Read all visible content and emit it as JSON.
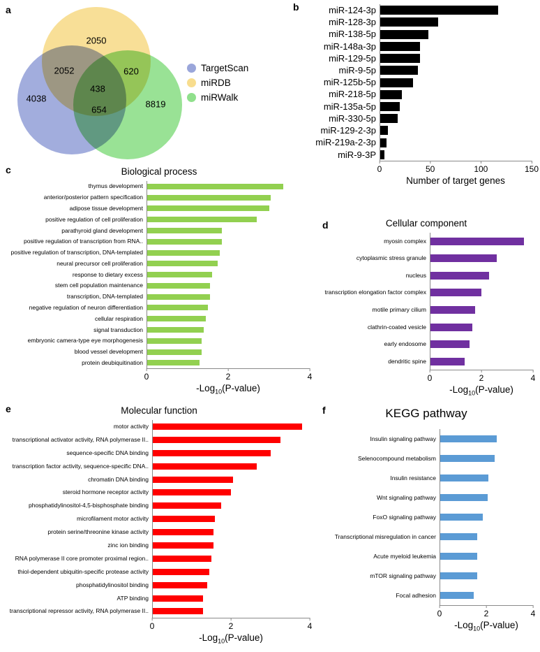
{
  "figure": {
    "panel_labels": {
      "a": "a",
      "b": "b",
      "c": "c",
      "d": "d",
      "e": "e",
      "f": "f"
    }
  },
  "venn": {
    "circles": [
      {
        "name": "TargetScan",
        "color": "#9aa6da"
      },
      {
        "name": "miRDB",
        "color": "#f8dd8e"
      },
      {
        "name": "miRWalk",
        "color": "#90e08c"
      }
    ],
    "counts": {
      "mirdb_only": "2050",
      "targetscan_mirdb": "2052",
      "mirdb_mirwalk": "620",
      "all_three": "438",
      "targetscan_only": "4038",
      "targetscan_mirwalk": "654",
      "mirwalk_only": "8819"
    },
    "legend": [
      {
        "label": "TargetScan",
        "color": "#9aa6da"
      },
      {
        "label": "miRDB",
        "color": "#f8dd8e"
      },
      {
        "label": "miRWalk",
        "color": "#90e08c"
      }
    ]
  },
  "chart_data": [
    {
      "id": "target-genes",
      "type": "bar",
      "orientation": "horizontal",
      "title": "",
      "xlabel": "Number of target genes",
      "xlim": [
        0,
        150
      ],
      "xticks": [
        0,
        50,
        100,
        150
      ],
      "grid": false,
      "legend_position": "none",
      "bar_color": "#000000",
      "categories": [
        "miR-124-3p",
        "miR-128-3p",
        "miR-138-5p",
        "miR-148a-3p",
        "miR-129-5p",
        "miR-9-5p",
        "miR-125b-5p",
        "miR-218-5p",
        "miR-135a-5p",
        "miR-330-5p",
        "miR-129-2-3p",
        "miR-219a-2-3p",
        "miR-9-3P"
      ],
      "values": [
        117,
        58,
        48,
        40,
        40,
        38,
        33,
        22,
        20,
        18,
        8,
        7,
        5
      ]
    },
    {
      "id": "biological-process",
      "type": "bar",
      "orientation": "horizontal",
      "title": "Biological process",
      "xlabel": "-Log10(P-value)",
      "xlim": [
        0,
        4
      ],
      "xticks": [
        0,
        2,
        4
      ],
      "grid": false,
      "legend_position": "none",
      "bar_color": "#92d050",
      "categories": [
        "thymus development",
        "anterior/posterior pattern specification",
        "adipose tissue development",
        "positive regulation of cell proliferation",
        "parathyroid gland development",
        "positive regulation of transcription from RNA..",
        "positive regulation of transcription, DNA-templated",
        "neural precursor cell proliferation",
        "response to dietary excess",
        "stem cell population maintenance",
        "transcription, DNA-templated",
        "negative regulation of neuron differentiation",
        "cellular respiration",
        "signal transduction",
        "embryonic camera-type eye morphogenesis",
        "blood vessel development",
        "protein deubiquitination"
      ],
      "values": [
        3.35,
        3.05,
        3.0,
        2.7,
        1.85,
        1.85,
        1.8,
        1.75,
        1.6,
        1.55,
        1.55,
        1.5,
        1.45,
        1.4,
        1.35,
        1.35,
        1.3
      ]
    },
    {
      "id": "cellular-component",
      "type": "bar",
      "orientation": "horizontal",
      "title": "Cellular component",
      "xlabel": "-Log10(P-value)",
      "xlim": [
        0,
        4
      ],
      "xticks": [
        0,
        2,
        4
      ],
      "grid": false,
      "legend_position": "none",
      "bar_color": "#7030a0",
      "categories": [
        "myosin complex",
        "cytoplasmic stress granule",
        "nucleus",
        "transcription elongation factor complex",
        "motile primary cilium",
        "clathrin-coated vesicle",
        "early endosome",
        "dendritic spine"
      ],
      "values": [
        3.65,
        2.6,
        2.3,
        2.0,
        1.75,
        1.65,
        1.55,
        1.35
      ]
    },
    {
      "id": "molecular-function",
      "type": "bar",
      "orientation": "horizontal",
      "title": "Molecular function",
      "xlabel": "-Log10(P-value)",
      "xlim": [
        0,
        4
      ],
      "xticks": [
        0,
        2,
        4
      ],
      "grid": false,
      "legend_position": "none",
      "bar_color": "#ff0000",
      "categories": [
        "motor activity",
        "transcriptional activator activity, RNA polymerase II..",
        "sequence-specific DNA binding",
        "transcription factor activity, sequence-specific DNA..",
        "chromatin DNA binding",
        "steroid hormone receptor activity",
        "phosphatidylinositol-4,5-bisphosphate binding",
        "microfilament motor activity",
        "protein serine/threonine kinase activity",
        "zinc ion binding",
        "RNA polymerase II core promoter proximal region..",
        "thiol-dependent ubiquitin-specific protease activity",
        "phosphatidylinositol binding",
        "ATP binding",
        "transcriptional repressor activity, RNA polymerase II.."
      ],
      "values": [
        3.8,
        3.25,
        3.0,
        2.65,
        2.05,
        2.0,
        1.75,
        1.6,
        1.55,
        1.55,
        1.5,
        1.45,
        1.4,
        1.3,
        1.3
      ]
    },
    {
      "id": "kegg-pathway",
      "type": "bar",
      "orientation": "horizontal",
      "title": "KEGG pathway",
      "xlabel": "-Log10(P-value)",
      "xlim": [
        0,
        4
      ],
      "xticks": [
        0,
        2,
        4
      ],
      "grid": false,
      "legend_position": "none",
      "bar_color": "#5b9bd5",
      "categories": [
        "Insulin signaling pathway",
        "Selenocompound metabolism",
        "Insulin resistance",
        "Wnt signaling pathway",
        "FoxO signaling pathway",
        "Transcriptional misregulation in cancer",
        "Acute myeloid leukemia",
        "mTOR signaling pathway",
        "Focal adhesion"
      ],
      "values": [
        2.45,
        2.35,
        2.1,
        2.05,
        1.85,
        1.6,
        1.6,
        1.6,
        1.45
      ]
    }
  ]
}
